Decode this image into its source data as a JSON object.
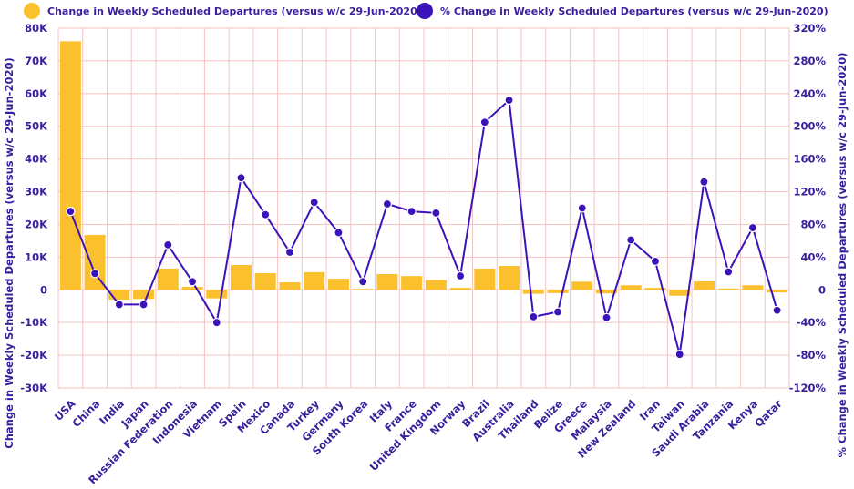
{
  "chart_data": {
    "type": "bar+line",
    "legend": {
      "bar_label": "Change in Weekly Scheduled Departures (versus w/c 29-Jun-2020)",
      "line_label": "% Change in Weekly Scheduled Departures (versus w/c 29-Jun-2020)",
      "placement": "top"
    },
    "ylabel_left": "Change in Weekly Scheduled Departures (versus w/c 29-Jun-2020)",
    "ylabel_right": "% Change in Weekly Scheduled Departures (versus w/c 29-Jun-2020)",
    "ylim_left": [
      -30000,
      80000
    ],
    "ylim_right": [
      -120,
      320
    ],
    "left_ticks": [
      {
        "value": 80000,
        "label": "80K"
      },
      {
        "value": 70000,
        "label": "70K"
      },
      {
        "value": 60000,
        "label": "60K"
      },
      {
        "value": 50000,
        "label": "50K"
      },
      {
        "value": 40000,
        "label": "40K"
      },
      {
        "value": 30000,
        "label": "30K"
      },
      {
        "value": 20000,
        "label": "20K"
      },
      {
        "value": 10000,
        "label": "10K"
      },
      {
        "value": 0,
        "label": "0"
      },
      {
        "value": -10000,
        "label": "-10K"
      },
      {
        "value": -20000,
        "label": "-20K"
      },
      {
        "value": -30000,
        "label": "-30K"
      }
    ],
    "right_ticks": [
      {
        "value": 320,
        "label": "320%"
      },
      {
        "value": 280,
        "label": "280%"
      },
      {
        "value": 240,
        "label": "240%"
      },
      {
        "value": 200,
        "label": "200%"
      },
      {
        "value": 160,
        "label": "160%"
      },
      {
        "value": 120,
        "label": "120%"
      },
      {
        "value": 80,
        "label": "80%"
      },
      {
        "value": 40,
        "label": "40%"
      },
      {
        "value": 0,
        "label": "0"
      },
      {
        "value": -40,
        "label": "-40%"
      },
      {
        "value": -80,
        "label": "-80%"
      },
      {
        "value": -120,
        "label": "-120%"
      }
    ],
    "categories": [
      "USA",
      "China",
      "India",
      "Japan",
      "Russian Federation",
      "Indonesia",
      "Vietnam",
      "Spain",
      "Mexico",
      "Canada",
      "Turkey",
      "Germany",
      "South Korea",
      "Italy",
      "France",
      "United Kingdom",
      "Norway",
      "Brazil",
      "Australia",
      "Thailand",
      "Belize",
      "Greece",
      "Malaysia",
      "New Zealand",
      "Iran",
      "Taiwan",
      "Saudi Arabia",
      "Tanzania",
      "Kenya",
      "Qatar"
    ],
    "series": [
      {
        "name": "Change in Weekly Scheduled Departures (versus w/c 29-Jun-2020)",
        "type": "bar",
        "axis": "left",
        "color": "#fbc02d",
        "values": [
          76000,
          16800,
          -3000,
          -2800,
          6500,
          900,
          -2600,
          7600,
          5100,
          2300,
          5400,
          3400,
          300,
          4800,
          4200,
          3000,
          600,
          6500,
          7300,
          -1200,
          -1000,
          2500,
          -1100,
          1400,
          600,
          -1800,
          2600,
          400,
          1400,
          -800
        ]
      },
      {
        "name": "% Change in Weekly Scheduled Departures (versus w/c 29-Jun-2020)",
        "type": "line",
        "axis": "right",
        "color": "#3a14b8",
        "values": [
          96,
          20,
          -18,
          -18,
          55,
          10,
          -40,
          137,
          92,
          46,
          107,
          70,
          10,
          105,
          96,
          94,
          17,
          205,
          232,
          -33,
          -27,
          100,
          -34,
          61,
          35,
          -79,
          132,
          22,
          76,
          -25
        ]
      }
    ],
    "grid": true
  }
}
